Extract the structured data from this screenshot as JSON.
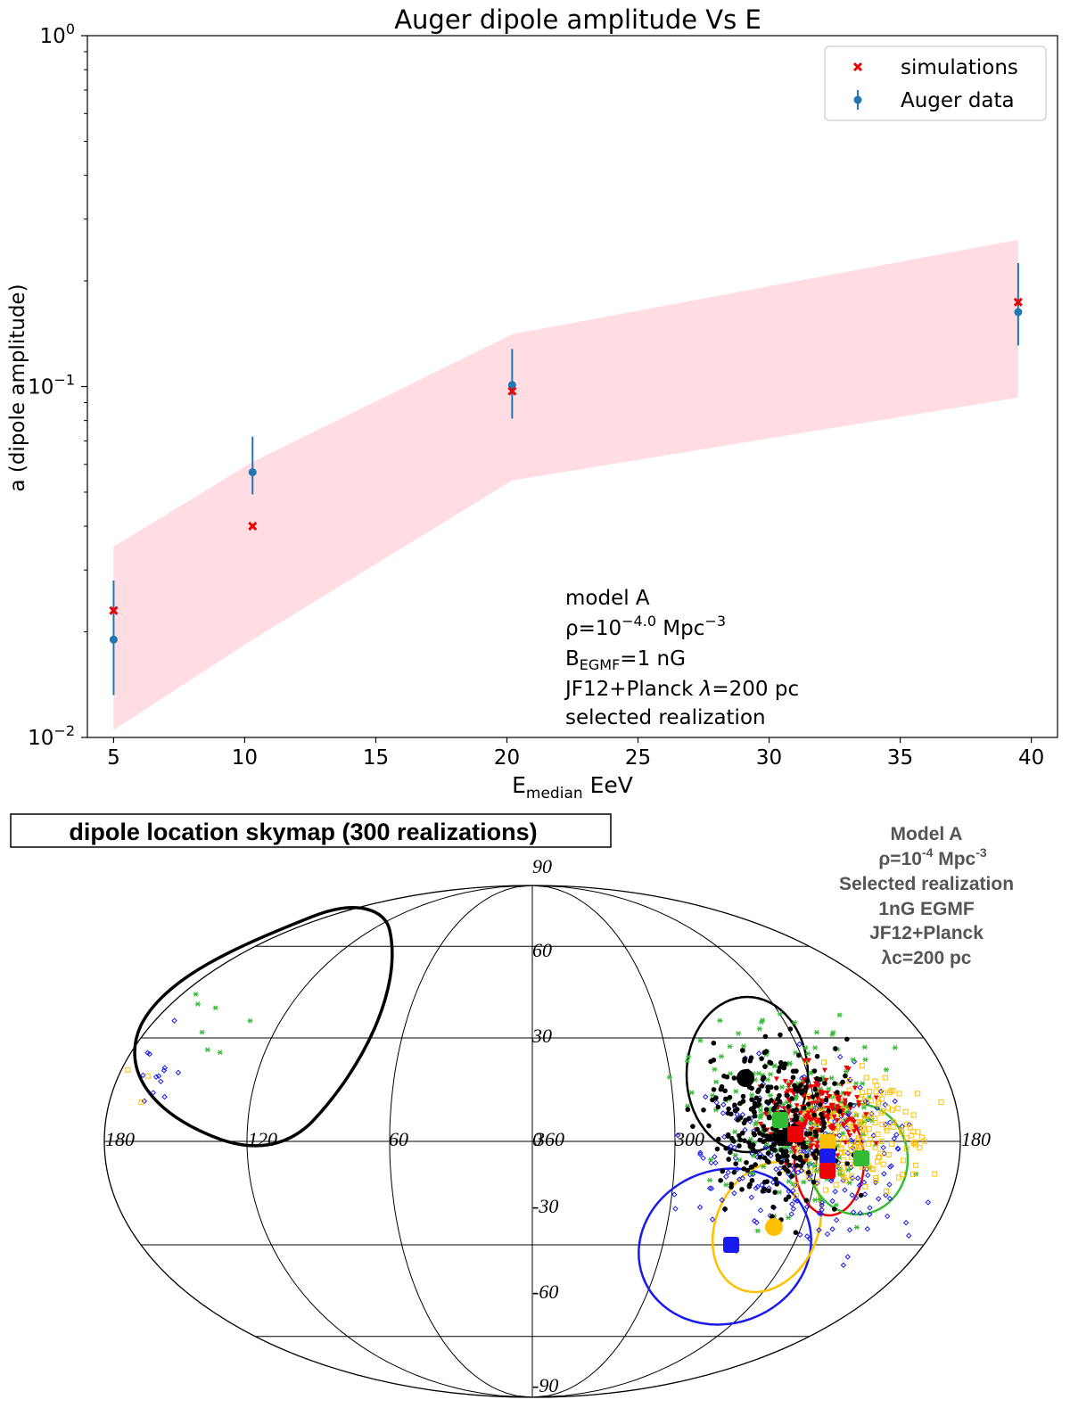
{
  "chart_data": [
    {
      "type": "scatter",
      "title": "Auger dipole amplitude Vs E",
      "xlabel_main": "E",
      "xlabel_sub": "median",
      "xlabel_unit": " EeV",
      "ylabel": "a (dipole amplitude)",
      "xlim": [
        4,
        41
      ],
      "ylim": [
        0.01,
        1
      ],
      "yscale": "log",
      "x_ticks": [
        5,
        10,
        15,
        20,
        25,
        30,
        35,
        40
      ],
      "x_tick_labels": [
        "5",
        "10",
        "15",
        "20",
        "25",
        "30",
        "35",
        "40"
      ],
      "y_ticks": [
        {
          "value": 1,
          "base": "10",
          "exp": "0"
        },
        {
          "value": 0.1,
          "base": "10",
          "exp": "−1"
        },
        {
          "value": 0.01,
          "base": "10",
          "exp": "−2"
        }
      ],
      "band": {
        "x": [
          5,
          10.3,
          20.2,
          39.5
        ],
        "lower": [
          0.0105,
          0.019,
          0.054,
          0.093
        ],
        "upper": [
          0.035,
          0.061,
          0.141,
          0.262
        ],
        "color": "#ffdde3"
      },
      "series": [
        {
          "name": "simulations",
          "color": "#ee0000",
          "marker": "x",
          "x": [
            5,
            10.3,
            20.2,
            39.5
          ],
          "y": [
            0.023,
            0.04,
            0.097,
            0.174
          ]
        },
        {
          "name": "Auger data",
          "color": "#1f77b4",
          "marker": "errorbar",
          "x": [
            5,
            10.3,
            20.2,
            39.5
          ],
          "y": [
            0.019,
            0.057,
            0.101,
            0.163
          ],
          "yerr_low": [
            0.0132,
            0.0493,
            0.081,
            0.131
          ],
          "yerr_high": [
            0.028,
            0.072,
            0.128,
            0.225
          ]
        }
      ],
      "legend_position": "top-right",
      "annotation": {
        "line1": "model A",
        "line2_a": "ρ=10",
        "line2_exp": "−4.0",
        "line2_b": " Mpc",
        "line2_exp2": "−3",
        "line3_a": "B",
        "line3_sub": "EGMF",
        "line3_b": "=1 nG",
        "line4_a": "JF12+Planck ",
        "line4_lambda": "λ",
        "line4_b": "=200 pc",
        "line5": "selected realization"
      }
    },
    {
      "type": "scatter",
      "title": "dipole location skymap (300 realizations)",
      "projection": "mollweide",
      "lon_labels": [
        "180",
        "120",
        "60",
        "0",
        "360",
        "300",
        "180"
      ],
      "lat_labels": [
        "90",
        "60",
        "30",
        "-30",
        "-60",
        "-90"
      ],
      "annotation": {
        "line1": "Model A",
        "line2_a": "ρ=10",
        "line2_exp": "-4",
        "line2_b": " Mpc",
        "line2_exp2": "-3",
        "line3": "Selected realization",
        "line4": "1nG EGMF",
        "line5": "JF12+Planck",
        "line6": "λc=200 pc"
      },
      "colors": {
        "black": "#000000",
        "red": "#ee0000",
        "green": "#33bb33",
        "blue": "#1a1aee",
        "yellow": "#ffc000"
      }
    }
  ]
}
